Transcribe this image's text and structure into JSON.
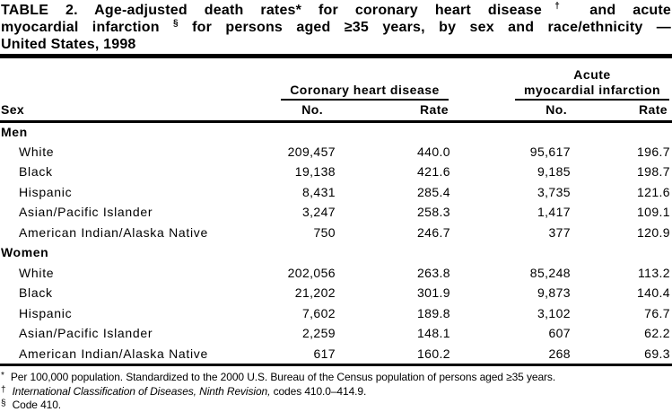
{
  "title": {
    "line1": {
      "t1": "TABLE 2. Age-adjusted death rates* for coronary heart disease",
      "sup1": "†",
      "t2": " and acute"
    },
    "line2": {
      "t1": "myocardial infarction",
      "sup1": "§",
      "t2": " for persons aged ≥35 years, by sex and race/ethnicity —"
    },
    "line3": "United States, 1998"
  },
  "table": {
    "sex_header": "Sex",
    "groups": [
      {
        "top": "",
        "label": "Coronary heart disease"
      },
      {
        "top": "Acute",
        "label": "myocardial infarction"
      }
    ],
    "sub_headers": {
      "no1": "No.",
      "rate1": "Rate",
      "no2": "No.",
      "rate2": "Rate"
    },
    "sections": [
      {
        "label": "Men",
        "rows": [
          {
            "label": "White",
            "chd_no": "209,457",
            "chd_rate": "440.0",
            "ami_no": "95,617",
            "ami_rate": "196.7"
          },
          {
            "label": "Black",
            "chd_no": "19,138",
            "chd_rate": "421.6",
            "ami_no": "9,185",
            "ami_rate": "198.7"
          },
          {
            "label": "Hispanic",
            "chd_no": "8,431",
            "chd_rate": "285.4",
            "ami_no": "3,735",
            "ami_rate": "121.6"
          },
          {
            "label": "Asian/Pacific Islander",
            "chd_no": "3,247",
            "chd_rate": "258.3",
            "ami_no": "1,417",
            "ami_rate": "109.1"
          },
          {
            "label": "American Indian/Alaska Native",
            "chd_no": "750",
            "chd_rate": "246.7",
            "ami_no": "377",
            "ami_rate": "120.9"
          }
        ]
      },
      {
        "label": "Women",
        "rows": [
          {
            "label": "White",
            "chd_no": "202,056",
            "chd_rate": "263.8",
            "ami_no": "85,248",
            "ami_rate": "113.2"
          },
          {
            "label": "Black",
            "chd_no": "21,202",
            "chd_rate": "301.9",
            "ami_no": "9,873",
            "ami_rate": "140.4"
          },
          {
            "label": "Hispanic",
            "chd_no": "7,602",
            "chd_rate": "189.8",
            "ami_no": "3,102",
            "ami_rate": "76.7"
          },
          {
            "label": "Asian/Pacific Islander",
            "chd_no": "2,259",
            "chd_rate": "148.1",
            "ami_no": "607",
            "ami_rate": "62.2"
          },
          {
            "label": "American Indian/Alaska Native",
            "chd_no": "617",
            "chd_rate": "160.2",
            "ami_no": "268",
            "ami_rate": "69.3"
          }
        ]
      }
    ]
  },
  "footnotes": [
    {
      "marker": "*",
      "italic": "",
      "text": "Per 100,000 population. Standardized to the 2000 U.S. Bureau of the Census population of persons aged ≥35 years."
    },
    {
      "marker": "†",
      "italic": "International Classification of Diseases, Ninth Revision,",
      "text": " codes 410.0–414.9."
    },
    {
      "marker": "§",
      "italic": "",
      "text": "Code 410."
    }
  ]
}
